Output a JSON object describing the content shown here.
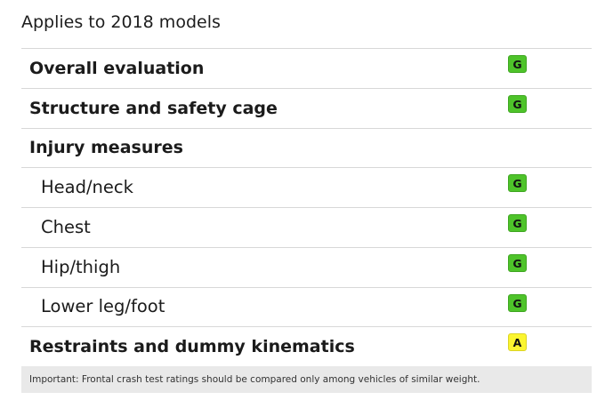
{
  "header": {
    "title": "Applies to 2018 models"
  },
  "rows": [
    {
      "label": "Overall evaluation",
      "rating": "G",
      "rating_type": "good"
    },
    {
      "label": "Structure and safety cage",
      "rating": "G",
      "rating_type": "good"
    },
    {
      "label": "Injury measures",
      "rating": "",
      "rating_type": ""
    },
    {
      "label": "Head/neck",
      "rating": "G",
      "rating_type": "good"
    },
    {
      "label": "Chest",
      "rating": "G",
      "rating_type": "good"
    },
    {
      "label": "Hip/thigh",
      "rating": "G",
      "rating_type": "good"
    },
    {
      "label": "Lower leg/foot",
      "rating": "G",
      "rating_type": "good"
    },
    {
      "label": "Restraints and dummy kinematics",
      "rating": "A",
      "rating_type": "acceptable"
    }
  ],
  "footnote": {
    "text": "Important: Frontal crash test ratings should be compared only among vehicles of similar weight."
  },
  "colors": {
    "good": "#4ec32a",
    "acceptable": "#fbf52f",
    "divider": "#d8d8d8",
    "footnote_bg": "#e9e9e9"
  }
}
